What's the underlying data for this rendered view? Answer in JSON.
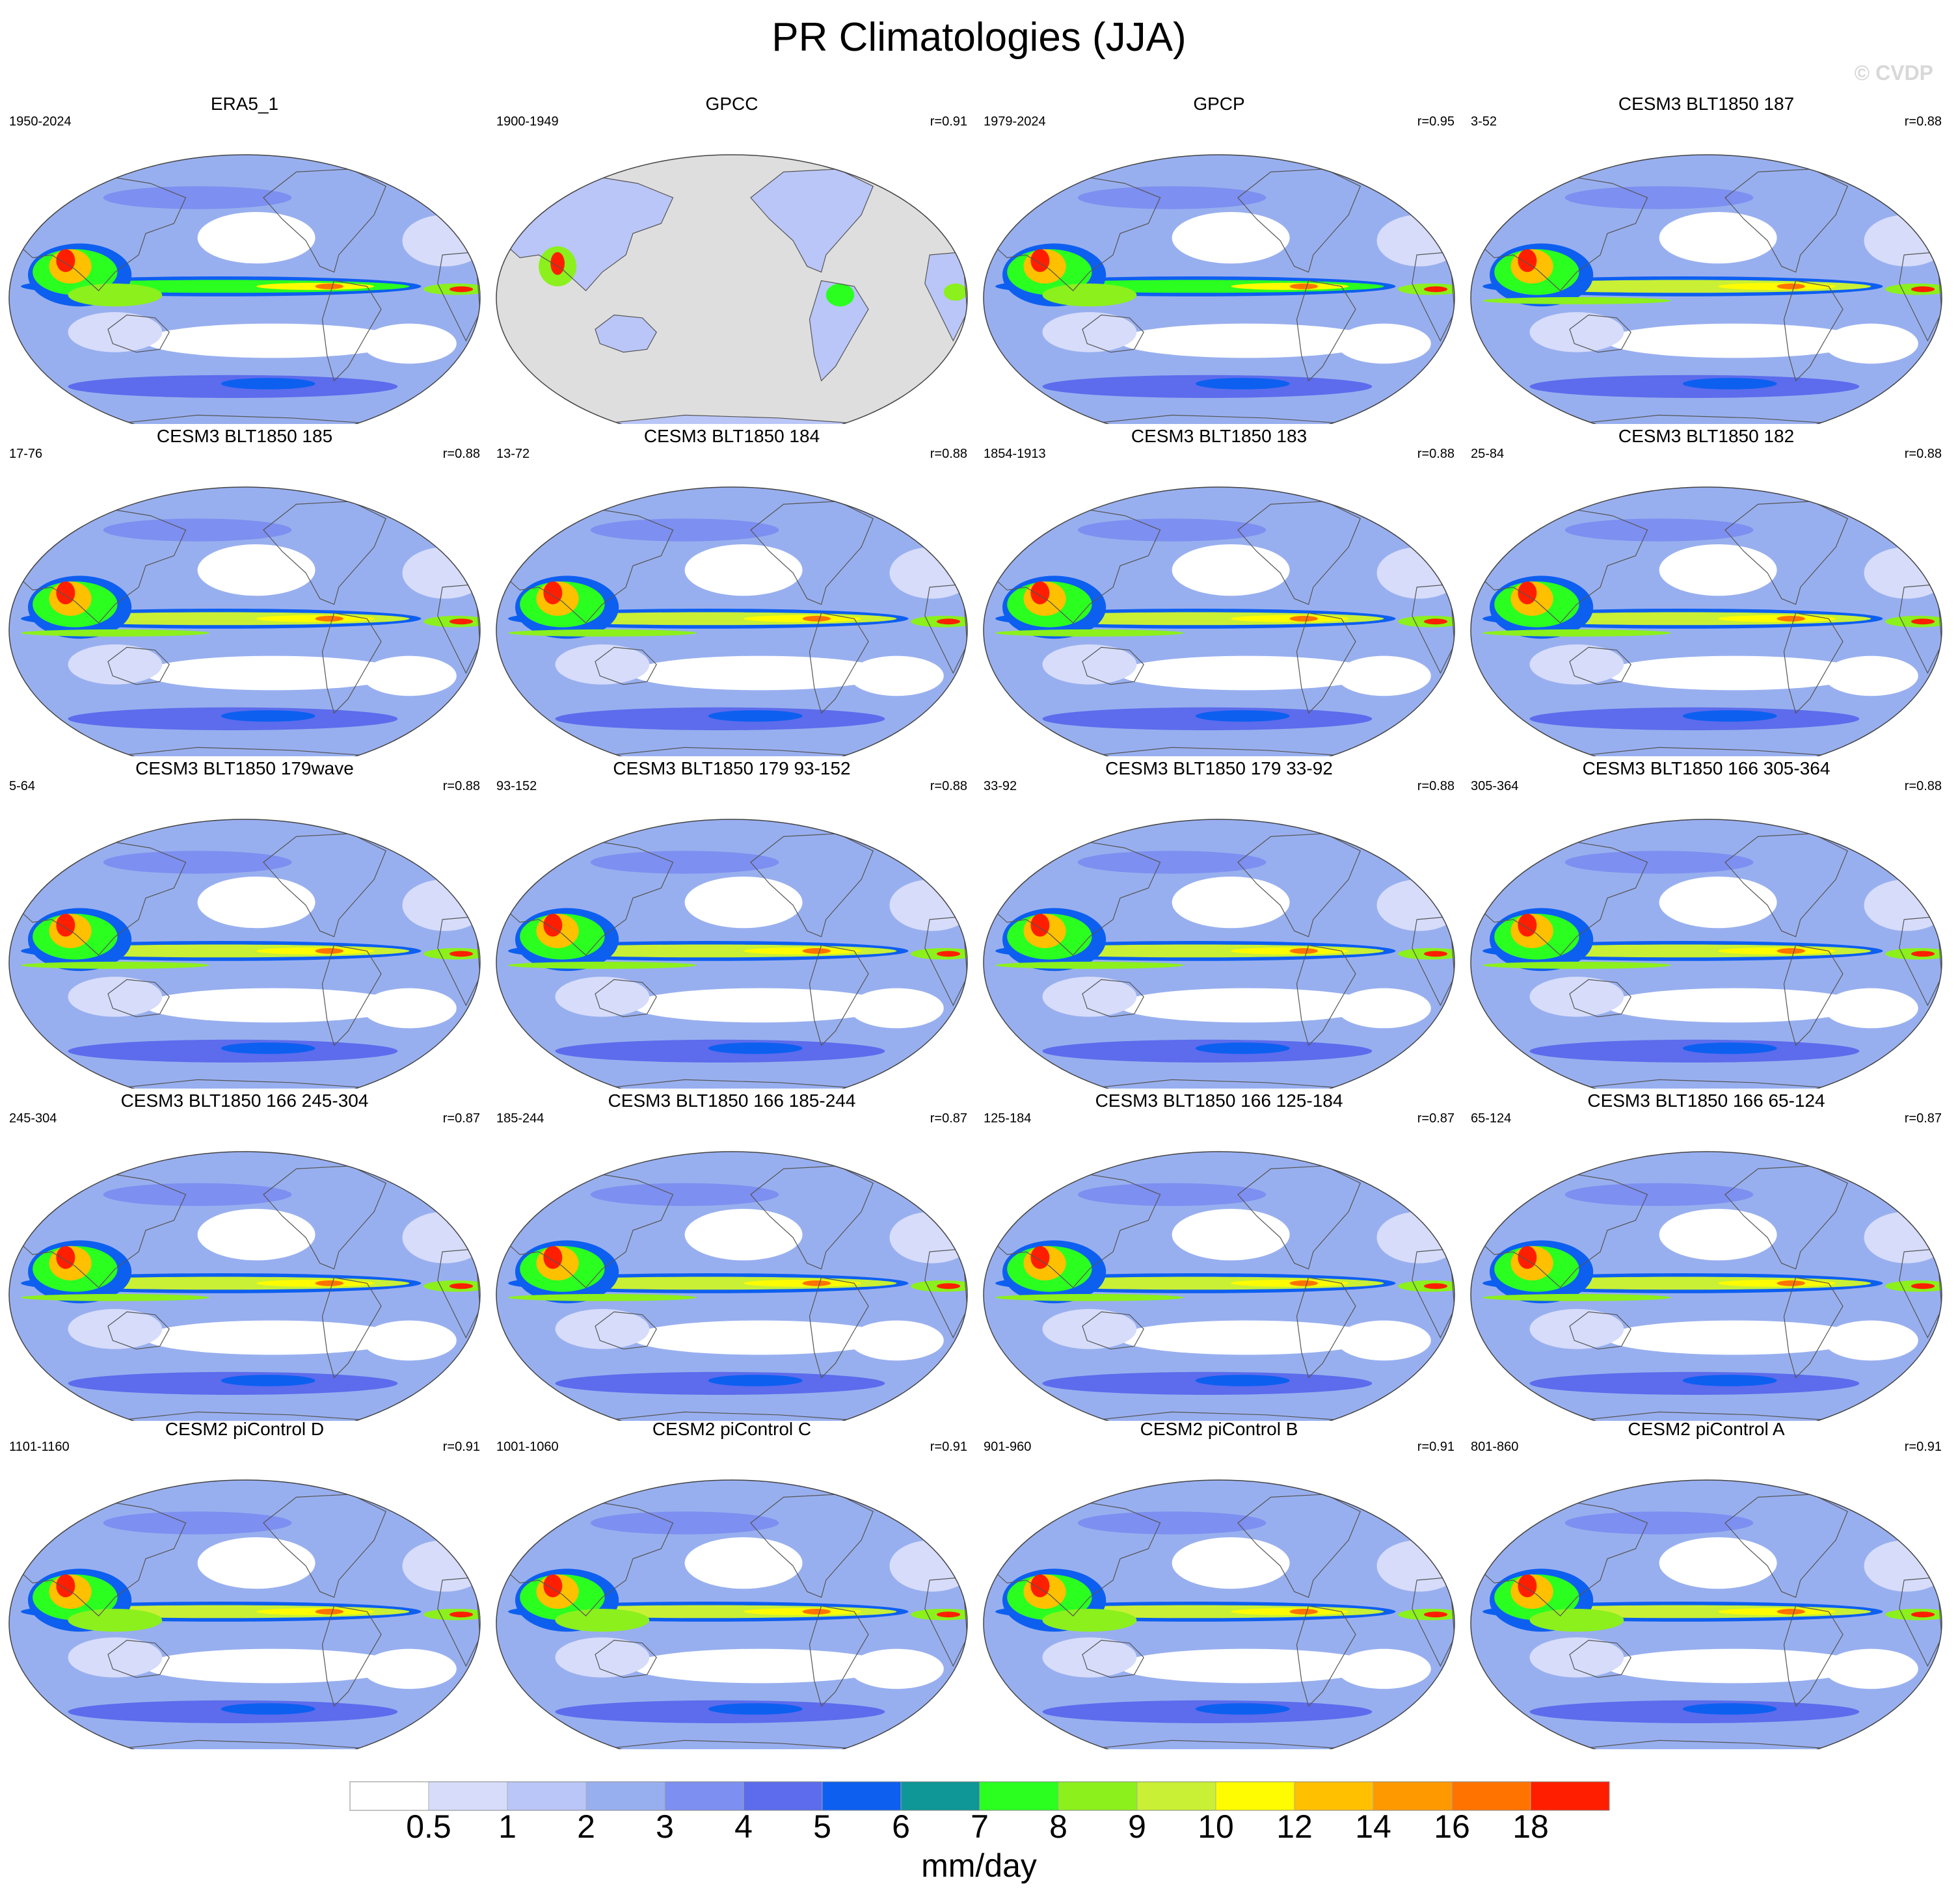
{
  "title": "PR Climatologies (JJA)",
  "watermark": "© CVDP",
  "units": "mm/day",
  "chart_data": {
    "type": "heatmap",
    "title": "PR Climatologies (JJA)",
    "units": "mm/day",
    "colorbar": {
      "levels": [
        "0.5",
        "1",
        "2",
        "3",
        "4",
        "5",
        "6",
        "7",
        "8",
        "9",
        "10",
        "12",
        "14",
        "16",
        "18"
      ],
      "colors": [
        "#ffffff",
        "#d6dcfa",
        "#bac6f7",
        "#98afef",
        "#7d8ff0",
        "#5c6cec",
        "#0d5ff0",
        "#0f9696",
        "#2bff20",
        "#8bf01c",
        "#c9f035",
        "#fffb00",
        "#ffc000",
        "#ff9900",
        "#ff7400",
        "#ff1f00"
      ]
    },
    "panels": [
      {
        "name": "ERA5_1",
        "years": "1950-2024",
        "r": "",
        "style": "obs",
        "gpcc": false
      },
      {
        "name": "GPCC",
        "years": "1900-1949",
        "r": "r=0.91",
        "style": "obs",
        "gpcc": true
      },
      {
        "name": "GPCP",
        "years": "1979-2024",
        "r": "r=0.95",
        "style": "obs",
        "gpcc": false
      },
      {
        "name": "CESM3 BLT1850 187",
        "years": "3-52",
        "r": "r=0.88",
        "style": "model",
        "gpcc": false
      },
      {
        "name": "CESM3 BLT1850 185",
        "years": "17-76",
        "r": "r=0.88",
        "style": "model",
        "gpcc": false
      },
      {
        "name": "CESM3 BLT1850 184",
        "years": "13-72",
        "r": "r=0.88",
        "style": "model",
        "gpcc": false
      },
      {
        "name": "CESM3 BLT1850 183",
        "years": "1854-1913",
        "r": "r=0.88",
        "style": "model",
        "gpcc": false
      },
      {
        "name": "CESM3 BLT1850 182",
        "years": "25-84",
        "r": "r=0.88",
        "style": "model",
        "gpcc": false
      },
      {
        "name": "CESM3 BLT1850 179wave",
        "years": "5-64",
        "r": "r=0.88",
        "style": "model",
        "gpcc": false
      },
      {
        "name": "CESM3 BLT1850 179 93-152",
        "years": "93-152",
        "r": "r=0.88",
        "style": "model",
        "gpcc": false
      },
      {
        "name": "CESM3 BLT1850 179 33-92",
        "years": "33-92",
        "r": "r=0.88",
        "style": "model",
        "gpcc": false
      },
      {
        "name": "CESM3 BLT1850 166 305-364",
        "years": "305-364",
        "r": "r=0.88",
        "style": "model",
        "gpcc": false
      },
      {
        "name": "CESM3 BLT1850 166 245-304",
        "years": "245-304",
        "r": "r=0.87",
        "style": "model",
        "gpcc": false
      },
      {
        "name": "CESM3 BLT1850 166 185-244",
        "years": "185-244",
        "r": "r=0.87",
        "style": "model",
        "gpcc": false
      },
      {
        "name": "CESM3 BLT1850 166 125-184",
        "years": "125-184",
        "r": "r=0.87",
        "style": "model",
        "gpcc": false
      },
      {
        "name": "CESM3 BLT1850 166 65-124",
        "years": "65-124",
        "r": "r=0.87",
        "style": "model",
        "gpcc": false
      },
      {
        "name": "CESM2 piControl D",
        "years": "1101-1160",
        "r": "r=0.91",
        "style": "cesm2",
        "gpcc": false
      },
      {
        "name": "CESM2 piControl C",
        "years": "1001-1060",
        "r": "r=0.91",
        "style": "cesm2",
        "gpcc": false
      },
      {
        "name": "CESM2 piControl B",
        "years": "901-960",
        "r": "r=0.91",
        "style": "cesm2",
        "gpcc": false
      },
      {
        "name": "CESM2 piControl A",
        "years": "801-860",
        "r": "r=0.91",
        "style": "cesm2",
        "gpcc": false
      }
    ]
  }
}
